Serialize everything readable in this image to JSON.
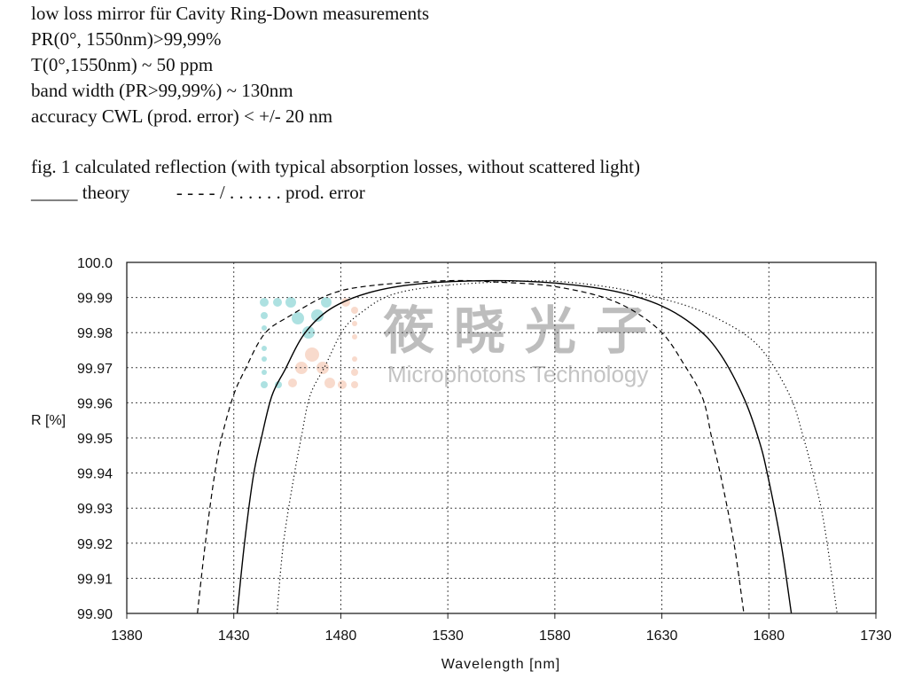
{
  "header": {
    "lines": [
      "low loss mirror für Cavity Ring-Down measurements",
      "PR(0°, 1550nm)>99,99%",
      "T(0°,1550nm) ~ 50 ppm",
      "band width (PR>99,99%) ~ 130nm",
      "accuracy CWL (prod. error) < +/- 20 nm"
    ],
    "caption": "fig. 1 calculated reflection (with typical absorption losses, without scattered light)",
    "legend_line": "_____ theory          - - - - / . . . . . . prod. error"
  },
  "watermark": {
    "cn": "筱晓光子",
    "en": "Microphotons Technology"
  },
  "chart_data": {
    "type": "line",
    "title": "",
    "xlabel": "Wavelength [nm]",
    "ylabel": "R [%]",
    "xlim": [
      1380,
      1730
    ],
    "ylim": [
      99.9,
      100.0
    ],
    "xticks": [
      "1380",
      "1430",
      "1480",
      "1530",
      "1580",
      "1630",
      "1680",
      "1730"
    ],
    "yticks": [
      "100.0",
      "99.99",
      "99.98",
      "99.97",
      "99.96",
      "99.95",
      "99.94",
      "99.93",
      "99.92",
      "99.91",
      "99.90"
    ],
    "grid": true,
    "series": [
      {
        "style": "solid",
        "color": "#000000",
        "x": [
          1431.6,
          1435.0,
          1439.1,
          1442.9,
          1447.8,
          1454.0,
          1462.9,
          1475.3,
          1493.3,
          1516.7,
          1551.0,
          1580.2,
          1607.8,
          1629.9,
          1646.4,
          1657.5,
          1668.5,
          1675.4,
          1679.5,
          1685.7,
          1690.5
        ],
        "y": [
          99.9,
          99.92,
          99.939,
          99.95,
          99.962,
          99.9695,
          99.9796,
          99.9868,
          99.9914,
          99.9939,
          99.9948,
          99.9941,
          99.9918,
          99.9876,
          99.9813,
          99.9737,
          99.9611,
          99.9493,
          99.9392,
          99.9199,
          99.9
        ]
      },
      {
        "style": "dashed",
        "color": "#000000",
        "x": [
          1413.0,
          1416.7,
          1420.9,
          1424.3,
          1429.8,
          1435.3,
          1444.3,
          1456.0,
          1475.3,
          1496.0,
          1530.5,
          1552.6,
          1580.2,
          1607.8,
          1628.5,
          1640.9,
          1649.2,
          1653.3,
          1657.5,
          1663.7,
          1668.2
        ],
        "y": [
          99.9,
          99.92,
          99.939,
          99.95,
          99.962,
          99.9695,
          99.9796,
          99.9847,
          99.991,
          99.9935,
          99.9948,
          99.9944,
          99.9931,
          99.9889,
          99.9809,
          99.9704,
          99.9611,
          99.95,
          99.9392,
          99.9199,
          99.9005
        ]
      },
      {
        "style": "dotted",
        "color": "#000000",
        "x": [
          1450.2,
          1453.2,
          1458.1,
          1461.5,
          1465.6,
          1472.6,
          1480.8,
          1489.1,
          1502.9,
          1523.6,
          1552.6,
          1580.2,
          1607.8,
          1629.9,
          1649.2,
          1668.5,
          1679.5,
          1690.5,
          1696.1,
          1700.9,
          1705.7,
          1711.9
        ],
        "y": [
          99.9,
          99.92,
          99.939,
          99.95,
          99.962,
          99.9704,
          99.9805,
          99.9855,
          99.9906,
          99.9931,
          99.9944,
          99.9946,
          99.9927,
          99.9897,
          99.9859,
          99.9796,
          99.9729,
          99.9611,
          99.9502,
          99.9392,
          99.9258,
          99.9
        ]
      }
    ]
  }
}
